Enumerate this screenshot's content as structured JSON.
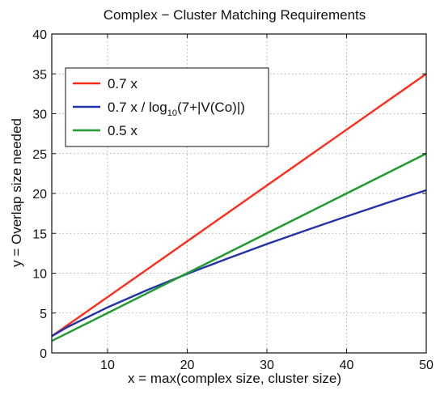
{
  "chart_data": {
    "type": "line",
    "title": "Complex − Cluster Matching Requirements",
    "xlabel": "x = max(complex size, cluster size)",
    "ylabel": "y = Overlap size needed",
    "xlim": [
      3,
      50
    ],
    "ylim": [
      0,
      40
    ],
    "xticks": [
      10,
      20,
      30,
      40,
      50
    ],
    "yticks": [
      0,
      5,
      10,
      15,
      20,
      25,
      30,
      35,
      40
    ],
    "grid": true,
    "legend_position": "upper-left",
    "series": [
      {
        "name": "0.7 x",
        "color": "#ff2a1a",
        "x": [
          3,
          10,
          20,
          30,
          40,
          50
        ],
        "y": [
          2.1,
          7.0,
          14.0,
          21.0,
          28.0,
          35.0
        ]
      },
      {
        "name": "0.7 x / log10(7+|V(Co)|)",
        "name_parts": {
          "main": "0.7 x / log",
          "subscript": "10",
          "tail": "(7+|V(Co)|)"
        },
        "color": "#2233aa",
        "x": [
          3,
          5,
          10,
          15,
          20,
          25,
          30,
          35,
          40,
          45,
          50
        ],
        "y": [
          2.1,
          3.26,
          5.71,
          7.89,
          9.91,
          11.82,
          13.65,
          15.41,
          17.12,
          18.79,
          20.41
        ]
      },
      {
        "name": "0.5 x",
        "color": "#1e9a2e",
        "x": [
          3,
          10,
          20,
          30,
          40,
          50
        ],
        "y": [
          1.5,
          5.0,
          10.0,
          15.0,
          20.0,
          25.0
        ]
      }
    ]
  }
}
